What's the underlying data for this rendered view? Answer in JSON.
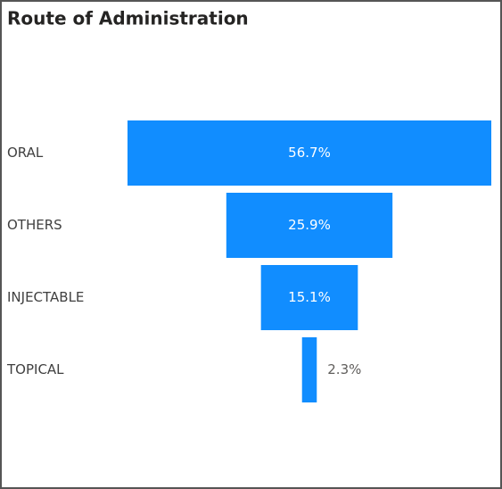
{
  "chart_data": {
    "type": "funnel",
    "title": "Route of Administration",
    "categories": [
      "ORAL",
      "OTHERS",
      "INJECTABLE",
      "TOPICAL"
    ],
    "values": [
      56.7,
      25.9,
      15.1,
      2.3
    ],
    "value_labels": [
      "56.7%",
      "25.9%",
      "15.1%",
      "2.3%"
    ],
    "color": "#118dff"
  }
}
